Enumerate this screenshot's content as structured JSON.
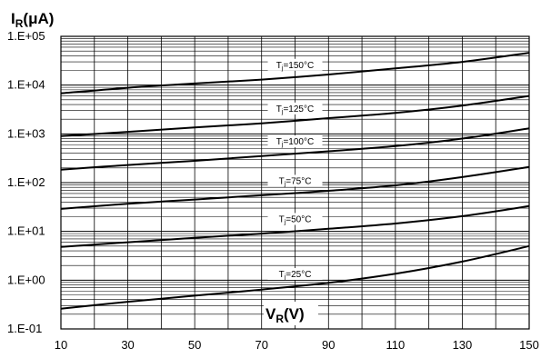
{
  "chart_data": {
    "type": "line",
    "y_scale": "log",
    "ylim": [
      0.1,
      100000
    ],
    "xlim": [
      10,
      150
    ],
    "x_ticks": [
      10,
      30,
      50,
      70,
      90,
      110,
      130,
      150
    ],
    "x_tick_labels": [
      "10",
      "30",
      "50",
      "70",
      "90",
      "110",
      "130",
      "150"
    ],
    "y_tick_labels": [
      "1.E+05",
      "1.E+04",
      "1.E+03",
      "1.E+02",
      "1.E+01",
      "1.E+00",
      "1.E-01"
    ],
    "y_axis_title": {
      "main": "I",
      "sub": "R",
      "unit": "(μA)"
    },
    "x_axis_title": {
      "main": "V",
      "sub": "R",
      "unit": "(V)"
    },
    "grid": true,
    "series": [
      {
        "name": "Tj=150°C",
        "label_main": "T",
        "label_sub": "j",
        "label_rest": "=150°C",
        "x": [
          10,
          30,
          50,
          70,
          90,
          110,
          130,
          150
        ],
        "y": [
          6800,
          8800,
          10800,
          13000,
          16500,
          22000,
          30000,
          46000
        ]
      },
      {
        "name": "Tj=125°C",
        "label_main": "T",
        "label_sub": "j",
        "label_rest": "=125°C",
        "x": [
          10,
          30,
          50,
          70,
          90,
          110,
          130,
          150
        ],
        "y": [
          900,
          1100,
          1350,
          1650,
          2100,
          2700,
          3800,
          6000
        ]
      },
      {
        "name": "Tj=100°C",
        "label_main": "T",
        "label_sub": "j",
        "label_rest": "=100°C",
        "x": [
          10,
          30,
          50,
          70,
          90,
          110,
          130,
          150
        ],
        "y": [
          185,
          230,
          280,
          350,
          440,
          560,
          800,
          1300
        ]
      },
      {
        "name": "Tj=75°C",
        "label_main": "T",
        "label_sub": "j",
        "label_rest": "=75°C",
        "x": [
          10,
          30,
          50,
          70,
          90,
          110,
          130,
          150
        ],
        "y": [
          29,
          37,
          45,
          55,
          68,
          88,
          130,
          210
        ]
      },
      {
        "name": "Tj=50°C",
        "label_main": "T",
        "label_sub": "j",
        "label_rest": "=50°C",
        "x": [
          10,
          30,
          50,
          70,
          90,
          110,
          130,
          150
        ],
        "y": [
          4.8,
          6.0,
          7.4,
          9.0,
          11.3,
          14.5,
          20.5,
          33
        ]
      },
      {
        "name": "Tj=25°C",
        "label_main": "T",
        "label_sub": "j",
        "label_rest": "=25°C",
        "x": [
          10,
          30,
          50,
          70,
          90,
          110,
          130,
          150
        ],
        "y": [
          0.26,
          0.36,
          0.48,
          0.64,
          0.88,
          1.35,
          2.4,
          5.0
        ]
      }
    ]
  }
}
